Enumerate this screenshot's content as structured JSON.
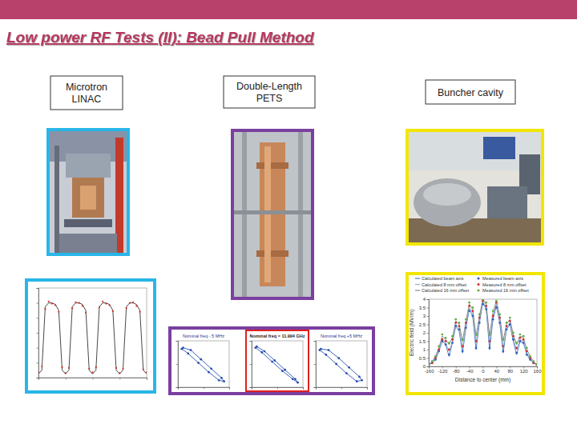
{
  "title": "Low power RF Tests (II): Bead Pull Method",
  "panels": [
    {
      "label": [
        "Microtron",
        "LINAC"
      ],
      "color": "#29b6e8"
    },
    {
      "label": [
        "Double-Length",
        "PETS"
      ],
      "color": "#7b3fa0"
    },
    {
      "label": [
        "Buncher cavity"
      ],
      "color": "#f2e600"
    }
  ],
  "chart_data": [
    {
      "type": "line",
      "x": [
        0,
        1,
        2,
        3,
        4,
        5,
        6,
        7,
        8,
        9,
        10,
        11,
        12,
        13,
        14,
        15,
        16,
        17,
        18,
        19,
        20,
        21,
        22,
        23,
        24,
        25,
        26,
        27,
        28,
        29,
        30,
        31,
        32
      ],
      "series": [
        {
          "color": "#333333",
          "line_style": "solid",
          "values": [
            0.05,
            0.1,
            0.95,
            1.0,
            1.0,
            0.98,
            0.9,
            0.1,
            0.05,
            0.1,
            0.95,
            1.0,
            1.0,
            0.98,
            0.9,
            0.1,
            0.05,
            0.1,
            0.95,
            1.0,
            1.0,
            0.98,
            0.9,
            0.1,
            0.05,
            0.1,
            0.95,
            1.0,
            1.0,
            0.98,
            0.9,
            0.1,
            0.05
          ]
        },
        {
          "color": "#d03020",
          "line_style": "none",
          "marker": "circle",
          "values": [
            0.08,
            0.15,
            0.92,
            1.02,
            0.99,
            0.97,
            0.88,
            0.14,
            0.06,
            0.13,
            0.93,
            1.01,
            1.0,
            0.96,
            0.87,
            0.12,
            0.07,
            0.14,
            0.94,
            1.02,
            0.99,
            0.97,
            0.89,
            0.13,
            0.06,
            0.12,
            0.93,
            1.0,
            1.01,
            0.96,
            0.88,
            0.11,
            0.07
          ]
        }
      ],
      "xlim": [
        0,
        32
      ],
      "ylim": [
        0,
        1.2
      ],
      "xticks": [
        0,
        8,
        16,
        24,
        32
      ],
      "yticks": [
        0,
        0.2,
        0.4,
        0.6,
        0.8,
        1,
        1.2
      ],
      "tick_labels": false
    },
    {
      "type": "line",
      "title": "Nominal freq - 5 MHz",
      "x": [
        -0.8,
        -0.5,
        -0.1,
        0.3,
        0.7,
        0.8,
        0.6,
        0.2,
        -0.2,
        -0.6,
        -0.85
      ],
      "series": [
        {
          "color": "#2850b0",
          "line_style": "solid",
          "marker": "circle",
          "values": [
            0.7,
            0.6,
            0.2,
            -0.2,
            -0.6,
            -0.75,
            -0.7,
            -0.35,
            0.05,
            0.45,
            0.65
          ]
        }
      ],
      "xlim": [
        -1,
        1
      ],
      "ylim": [
        -1,
        1
      ],
      "xticks": [
        -1,
        0,
        1
      ],
      "yticks": [
        -1,
        0,
        1
      ],
      "tick_labels": false
    },
    {
      "type": "line",
      "title": "Nominal freq = 11.994 GHz",
      "x": [
        -0.8,
        -0.5,
        -0.1,
        0.3,
        0.7,
        0.8,
        0.6,
        0.2,
        -0.2,
        -0.6,
        -0.85
      ],
      "series": [
        {
          "color": "#2850b0",
          "line_style": "solid",
          "marker": "circle",
          "values": [
            0.75,
            0.55,
            0.15,
            -0.25,
            -0.65,
            -0.8,
            -0.65,
            -0.3,
            0.1,
            0.5,
            0.7
          ]
        }
      ],
      "xlim": [
        -1,
        1
      ],
      "ylim": [
        -1,
        1
      ],
      "xticks": [
        -1,
        0,
        1
      ],
      "yticks": [
        -1,
        0,
        1
      ],
      "tick_labels": false
    },
    {
      "type": "line",
      "title": "Nominal freq +5 MHz",
      "x": [
        -0.8,
        -0.5,
        -0.1,
        0.3,
        0.7,
        0.8,
        0.6,
        0.2,
        -0.2,
        -0.6,
        -0.85
      ],
      "series": [
        {
          "color": "#2850b0",
          "line_style": "solid",
          "marker": "circle",
          "values": [
            0.65,
            0.6,
            0.25,
            -0.15,
            -0.55,
            -0.7,
            -0.75,
            -0.4,
            0.0,
            0.4,
            0.6
          ]
        }
      ],
      "xlim": [
        -1,
        1
      ],
      "ylim": [
        -1,
        1
      ],
      "xticks": [
        -1,
        0,
        1
      ],
      "yticks": [
        -1,
        0,
        1
      ],
      "tick_labels": false
    },
    {
      "type": "line",
      "x_label": "Distance to center (mm)",
      "y_label": "Electric field (MV/m)",
      "x": [
        -160,
        -150,
        -140,
        -130,
        -120,
        -110,
        -100,
        -90,
        -80,
        -70,
        -60,
        -50,
        -40,
        -30,
        -20,
        -10,
        0,
        10,
        20,
        30,
        40,
        50,
        60,
        70,
        80,
        90,
        100,
        110,
        120,
        130,
        140,
        150,
        160
      ],
      "series": [
        {
          "name": "Calculated beam axis",
          "color": "#4a7ec8",
          "line_style": "solid",
          "values": [
            0.1,
            0.2,
            0.4,
            0.9,
            1.5,
            1.3,
            0.6,
            1.4,
            2.4,
            2.1,
            0.8,
            2.3,
            3.4,
            3.0,
            1.0,
            2.6,
            3.8,
            3.4,
            1.0,
            2.8,
            3.6,
            2.6,
            0.8,
            2.2,
            2.5,
            1.5,
            0.7,
            1.5,
            1.4,
            0.7,
            0.4,
            0.2,
            0.1
          ]
        },
        {
          "name": "Calculated 8 mm offset",
          "color": "#9ab0c8",
          "line_style": "solid",
          "values": [
            0.1,
            0.2,
            0.5,
            1.0,
            1.6,
            1.4,
            0.9,
            1.5,
            2.5,
            2.3,
            1.1,
            2.5,
            3.5,
            3.2,
            1.4,
            2.8,
            3.9,
            3.5,
            1.4,
            3.0,
            3.7,
            2.8,
            1.1,
            2.3,
            2.6,
            1.7,
            1.0,
            1.6,
            1.5,
            0.8,
            0.5,
            0.2,
            0.1
          ]
        },
        {
          "name": "Calculated 16 mm offset",
          "color": "#888888",
          "line_style": "solid",
          "values": [
            0.1,
            0.3,
            0.6,
            1.1,
            1.8,
            1.6,
            1.3,
            1.7,
            2.7,
            2.5,
            1.5,
            2.7,
            3.7,
            3.4,
            1.8,
            3.0,
            4.0,
            3.7,
            1.8,
            3.2,
            3.9,
            3.0,
            1.5,
            2.5,
            2.8,
            1.9,
            1.3,
            1.8,
            1.7,
            1.0,
            0.6,
            0.3,
            0.1
          ]
        },
        {
          "name": "Measured beam axis",
          "color": "#3060c0",
          "line_style": "none",
          "marker": "circle",
          "values": [
            0.1,
            0.2,
            0.4,
            0.9,
            1.5,
            1.3,
            0.7,
            1.4,
            2.4,
            2.2,
            0.9,
            2.3,
            3.3,
            3.0,
            1.1,
            2.6,
            3.7,
            3.4,
            1.1,
            2.8,
            3.5,
            2.6,
            0.9,
            2.2,
            2.5,
            1.6,
            0.8,
            1.5,
            1.4,
            0.7,
            0.4,
            0.2,
            0.1
          ]
        },
        {
          "name": "Measured 8 mm offset",
          "color": "#d03030",
          "line_style": "none",
          "marker": "circle",
          "values": [
            0.1,
            0.2,
            0.5,
            1.0,
            1.6,
            1.5,
            1.0,
            1.6,
            2.6,
            2.4,
            1.2,
            2.6,
            3.6,
            3.3,
            1.5,
            2.9,
            3.9,
            3.6,
            1.5,
            3.0,
            3.8,
            2.9,
            1.2,
            2.4,
            2.7,
            1.8,
            1.1,
            1.7,
            1.6,
            0.9,
            0.5,
            0.2,
            0.1
          ]
        },
        {
          "name": "Measured 16 mm offset",
          "color": "#60b040",
          "line_style": "none",
          "marker": "circle",
          "values": [
            0.1,
            0.3,
            0.6,
            1.2,
            1.9,
            1.7,
            1.4,
            1.8,
            2.8,
            2.6,
            1.6,
            2.8,
            3.8,
            3.5,
            1.9,
            3.1,
            4.0,
            3.8,
            1.9,
            3.3,
            3.9,
            3.1,
            1.6,
            2.6,
            2.9,
            2.0,
            1.4,
            1.9,
            1.8,
            1.1,
            0.6,
            0.3,
            0.1
          ]
        }
      ],
      "xlim": [
        -160,
        160
      ],
      "ylim": [
        0,
        4
      ],
      "xticks": [
        -160,
        -120,
        -80,
        -40,
        0,
        40,
        80,
        120,
        160
      ],
      "yticks": [
        0,
        0.5,
        1,
        1.5,
        2,
        2.5,
        3,
        3.5,
        4
      ],
      "legend": "top"
    }
  ]
}
